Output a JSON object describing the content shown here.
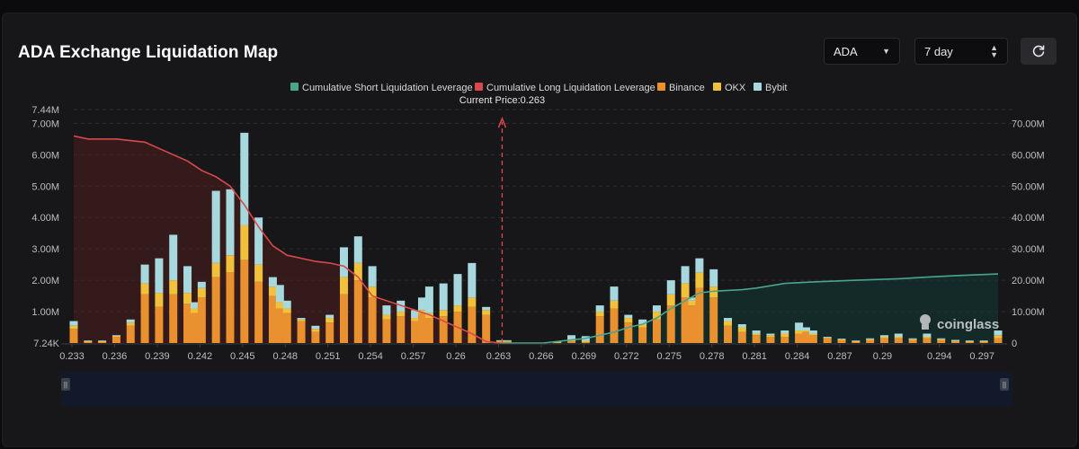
{
  "header": {
    "title": "ADA Exchange Liquidation Map",
    "asset_select": "ADA",
    "range_select": "7 day",
    "refresh_icon": "refresh-icon"
  },
  "watermark": "coinglass",
  "colors": {
    "short": "#4aa58e",
    "long": "#d9494b",
    "binance": "#e8912e",
    "okx": "#f2c13b",
    "bybit": "#a6d8de",
    "long_fill": "#5a1f1f",
    "short_fill": "#123a36"
  },
  "chart_data": {
    "type": "bar",
    "legend_position": "top-center",
    "legend": [
      "Cumulative Short Liquidation Leverage",
      "Cumulative Long Liquidation Leverage",
      "Binance",
      "OKX",
      "Bybit"
    ],
    "current_price_label": "Current Price:0.263",
    "current_price": 0.263,
    "x_range": [
      0.233,
      0.298
    ],
    "x_ticks": [
      "0.233",
      "0.236",
      "0.239",
      "0.242",
      "0.245",
      "0.248",
      "0.251",
      "0.254",
      "0.257",
      "0.26",
      "0.263",
      "0.266",
      "0.269",
      "0.272",
      "0.275",
      "0.278",
      "0.281",
      "0.284",
      "0.287",
      "0.29",
      "0.294",
      "0.297"
    ],
    "y_left_ticks": [
      "7.24K",
      "1.00M",
      "2.00M",
      "3.00M",
      "4.00M",
      "5.00M",
      "6.00M",
      "7.00M",
      "7.44M"
    ],
    "y_left_range": [
      0,
      7440000
    ],
    "y_right_ticks": [
      "0",
      "10.00M",
      "20.00M",
      "30.00M",
      "40.00M",
      "50.00M",
      "60.00M",
      "70.00M"
    ],
    "y_right_range": [
      0,
      74400000
    ],
    "grid": true,
    "bars": [
      {
        "x": 0.233,
        "binance": 0.45,
        "okx": 0.1,
        "bybit": 0.15
      },
      {
        "x": 0.234,
        "binance": 0.05,
        "okx": 0.01,
        "bybit": 0.02
      },
      {
        "x": 0.235,
        "binance": 0.05,
        "okx": 0.01,
        "bybit": 0.02
      },
      {
        "x": 0.236,
        "binance": 0.2,
        "okx": 0.03,
        "bybit": 0.02
      },
      {
        "x": 0.237,
        "binance": 0.55,
        "okx": 0.1,
        "bybit": 0.1
      },
      {
        "x": 0.238,
        "binance": 1.55,
        "okx": 0.35,
        "bybit": 0.6
      },
      {
        "x": 0.239,
        "binance": 1.15,
        "okx": 0.45,
        "bybit": 1.1
      },
      {
        "x": 0.24,
        "binance": 1.55,
        "okx": 0.45,
        "bybit": 1.45
      },
      {
        "x": 0.241,
        "binance": 1.25,
        "okx": 0.35,
        "bybit": 0.85
      },
      {
        "x": 0.2415,
        "binance": 0.95,
        "okx": 0.15,
        "bybit": 0.2
      },
      {
        "x": 0.242,
        "binance": 1.45,
        "okx": 0.3,
        "bybit": 0.2
      },
      {
        "x": 0.243,
        "binance": 2.1,
        "okx": 0.45,
        "bybit": 2.3
      },
      {
        "x": 0.244,
        "binance": 2.25,
        "okx": 0.55,
        "bybit": 2.1
      },
      {
        "x": 0.245,
        "binance": 2.65,
        "okx": 1.1,
        "bybit": 2.95
      },
      {
        "x": 0.246,
        "binance": 1.95,
        "okx": 0.55,
        "bybit": 1.5
      },
      {
        "x": 0.247,
        "binance": 1.5,
        "okx": 0.3,
        "bybit": 0.3
      },
      {
        "x": 0.2475,
        "binance": 1.1,
        "okx": 0.2,
        "bybit": 0.55
      },
      {
        "x": 0.248,
        "binance": 0.95,
        "okx": 0.15,
        "bybit": 0.25
      },
      {
        "x": 0.249,
        "binance": 0.7,
        "okx": 0.05,
        "bybit": 0.05
      },
      {
        "x": 0.25,
        "binance": 0.35,
        "okx": 0.1,
        "bybit": 0.1
      },
      {
        "x": 0.251,
        "binance": 0.65,
        "okx": 0.15,
        "bybit": 0.1
      },
      {
        "x": 0.252,
        "binance": 1.55,
        "okx": 0.55,
        "bybit": 0.95
      },
      {
        "x": 0.253,
        "binance": 2.0,
        "okx": 0.55,
        "bybit": 0.85
      },
      {
        "x": 0.254,
        "binance": 1.45,
        "okx": 0.35,
        "bybit": 0.65
      },
      {
        "x": 0.255,
        "binance": 0.75,
        "okx": 0.15,
        "bybit": 0.3
      },
      {
        "x": 0.256,
        "binance": 0.85,
        "okx": 0.15,
        "bybit": 0.35
      },
      {
        "x": 0.257,
        "binance": 0.7,
        "okx": 0.1,
        "bybit": 0.25
      },
      {
        "x": 0.2575,
        "binance": 0.95,
        "okx": 0.1,
        "bybit": 0.4
      },
      {
        "x": 0.258,
        "binance": 0.8,
        "okx": 0.15,
        "bybit": 0.85
      },
      {
        "x": 0.259,
        "binance": 0.85,
        "okx": 0.2,
        "bybit": 0.85
      },
      {
        "x": 0.26,
        "binance": 1.0,
        "okx": 0.2,
        "bybit": 1.0
      },
      {
        "x": 0.261,
        "binance": 1.15,
        "okx": 0.3,
        "bybit": 1.1
      },
      {
        "x": 0.262,
        "binance": 0.9,
        "okx": 0.15,
        "bybit": 0.1
      },
      {
        "x": 0.263,
        "binance": 0.05,
        "okx": 0.02,
        "bybit": 0.02
      },
      {
        "x": 0.2635,
        "binance": 0.05,
        "okx": 0.02,
        "bybit": 0.02
      },
      {
        "x": 0.267,
        "binance": 0.02,
        "okx": 0.01,
        "bybit": 0.02
      },
      {
        "x": 0.268,
        "binance": 0.05,
        "okx": 0.05,
        "bybit": 0.15
      },
      {
        "x": 0.269,
        "binance": 0.02,
        "okx": 0.05,
        "bybit": 0.15
      },
      {
        "x": 0.27,
        "binance": 0.85,
        "okx": 0.15,
        "bybit": 0.2
      },
      {
        "x": 0.271,
        "binance": 1.1,
        "okx": 0.25,
        "bybit": 0.45
      },
      {
        "x": 0.272,
        "binance": 0.65,
        "okx": 0.15,
        "bybit": 0.1
      },
      {
        "x": 0.273,
        "binance": 0.5,
        "okx": 0.1,
        "bybit": 0.15
      },
      {
        "x": 0.274,
        "binance": 0.75,
        "okx": 0.25,
        "bybit": 0.2
      },
      {
        "x": 0.275,
        "binance": 1.2,
        "okx": 0.35,
        "bybit": 0.45
      },
      {
        "x": 0.276,
        "binance": 1.45,
        "okx": 0.45,
        "bybit": 0.55
      },
      {
        "x": 0.2765,
        "binance": 1.2,
        "okx": 0.15,
        "bybit": 0.1
      },
      {
        "x": 0.277,
        "binance": 1.75,
        "okx": 0.5,
        "bybit": 0.45
      },
      {
        "x": 0.278,
        "binance": 1.45,
        "okx": 0.35,
        "bybit": 0.55
      },
      {
        "x": 0.279,
        "binance": 0.55,
        "okx": 0.15,
        "bybit": 0.1
      },
      {
        "x": 0.28,
        "binance": 0.35,
        "okx": 0.15,
        "bybit": 0.1
      },
      {
        "x": 0.281,
        "binance": 0.25,
        "okx": 0.05,
        "bybit": 0.1
      },
      {
        "x": 0.282,
        "binance": 0.2,
        "okx": 0.05,
        "bybit": 0.05
      },
      {
        "x": 0.283,
        "binance": 0.2,
        "okx": 0.1,
        "bybit": 0.1
      },
      {
        "x": 0.284,
        "binance": 0.3,
        "okx": 0.1,
        "bybit": 0.25
      },
      {
        "x": 0.2845,
        "binance": 0.35,
        "okx": 0.05,
        "bybit": 0.1
      },
      {
        "x": 0.285,
        "binance": 0.25,
        "okx": 0.05,
        "bybit": 0.1
      },
      {
        "x": 0.286,
        "binance": 0.15,
        "okx": 0.03,
        "bybit": 0.02
      },
      {
        "x": 0.287,
        "binance": 0.1,
        "okx": 0.02,
        "bybit": 0.02
      },
      {
        "x": 0.288,
        "binance": 0.05,
        "okx": 0.01,
        "bybit": 0.02
      },
      {
        "x": 0.289,
        "binance": 0.1,
        "okx": 0.02,
        "bybit": 0.03
      },
      {
        "x": 0.29,
        "binance": 0.15,
        "okx": 0.05,
        "bybit": 0.05
      },
      {
        "x": 0.291,
        "binance": 0.15,
        "okx": 0.05,
        "bybit": 0.1
      },
      {
        "x": 0.292,
        "binance": 0.1,
        "okx": 0.02,
        "bybit": 0.03
      },
      {
        "x": 0.293,
        "binance": 0.15,
        "okx": 0.05,
        "bybit": 0.1
      },
      {
        "x": 0.294,
        "binance": 0.1,
        "okx": 0.02,
        "bybit": 0.03
      },
      {
        "x": 0.295,
        "binance": 0.05,
        "okx": 0.02,
        "bybit": 0.03
      },
      {
        "x": 0.296,
        "binance": 0.05,
        "okx": 0.01,
        "bybit": 0.02
      },
      {
        "x": 0.297,
        "binance": 0.05,
        "okx": 0.01,
        "bybit": 0.02
      },
      {
        "x": 0.298,
        "binance": 0.15,
        "okx": 0.1,
        "bybit": 0.15
      }
    ],
    "bar_unit": "M",
    "long_cumulative": {
      "x": [
        0.233,
        0.234,
        0.236,
        0.238,
        0.239,
        0.24,
        0.241,
        0.242,
        0.243,
        0.244,
        0.245,
        0.246,
        0.247,
        0.248,
        0.249,
        0.25,
        0.251,
        0.252,
        0.253,
        0.254,
        0.256,
        0.258,
        0.26,
        0.261,
        0.262,
        0.263
      ],
      "y": [
        66,
        65,
        65,
        64,
        62,
        60,
        58,
        55,
        53,
        50,
        44,
        37,
        31,
        28,
        27,
        26,
        25.5,
        24.5,
        21,
        15,
        12,
        9,
        5,
        3,
        0.5,
        0
      ]
    },
    "short_cumulative": {
      "x": [
        0.263,
        0.266,
        0.269,
        0.27,
        0.271,
        0.272,
        0.273,
        0.274,
        0.275,
        0.276,
        0.277,
        0.278,
        0.28,
        0.281,
        0.283,
        0.285,
        0.288,
        0.291,
        0.293,
        0.295,
        0.298
      ],
      "y": [
        0,
        0,
        1.5,
        2.5,
        3.5,
        5,
        6,
        8,
        11,
        13.5,
        16,
        16.5,
        17,
        17.5,
        19,
        19.5,
        20,
        20.5,
        21,
        21.5,
        22
      ]
    }
  }
}
